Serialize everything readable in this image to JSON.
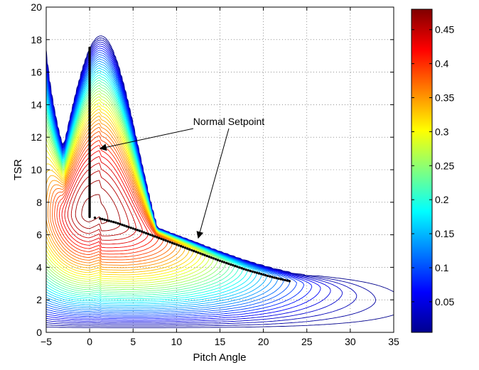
{
  "chart_data": {
    "type": "contour",
    "xlabel": "Pitch Angle",
    "ylabel": "TSR",
    "xlim": [
      -5,
      35
    ],
    "ylim": [
      0,
      20
    ],
    "xticks": [
      "−5",
      "0",
      "5",
      "10",
      "15",
      "20",
      "25",
      "30",
      "35"
    ],
    "yticks": [
      "0",
      "2",
      "4",
      "6",
      "8",
      "10",
      "12",
      "14",
      "16",
      "18",
      "20"
    ],
    "grid": true,
    "colorbar": {
      "range": [
        0.005,
        0.48
      ],
      "ticks": [
        "0.05",
        "0.1",
        "0.15",
        "0.2",
        "0.25",
        "0.3",
        "0.35",
        "0.4",
        "0.45"
      ],
      "colormap": "jet"
    },
    "surface": {
      "quantity_range": [
        0.005,
        0.475
      ],
      "peak": {
        "x": 0.2,
        "y": 7.7,
        "value": 0.475
      },
      "contour_levels": 46
    },
    "setpoint_series": [
      {
        "x": 0,
        "y": 17.5
      },
      {
        "x": 0,
        "y": 16.0
      },
      {
        "x": 0,
        "y": 14.5
      },
      {
        "x": 0,
        "y": 13.0
      },
      {
        "x": 0,
        "y": 11.5
      },
      {
        "x": 0,
        "y": 10.0
      },
      {
        "x": 0,
        "y": 8.5
      },
      {
        "x": 0,
        "y": 7.1
      },
      {
        "x": 1.2,
        "y": 7.0
      },
      {
        "x": 3,
        "y": 6.75
      },
      {
        "x": 6,
        "y": 6.2
      },
      {
        "x": 9,
        "y": 5.6
      },
      {
        "x": 12,
        "y": 5.0
      },
      {
        "x": 15,
        "y": 4.4
      },
      {
        "x": 18,
        "y": 3.85
      },
      {
        "x": 21,
        "y": 3.4
      },
      {
        "x": 23,
        "y": 3.15
      }
    ],
    "annotation": {
      "text": "Normal Setpoint",
      "arrow_targets": [
        {
          "x": 1.2,
          "y": 11.3
        },
        {
          "x": 12.5,
          "y": 5.8
        }
      ]
    },
    "colors": {
      "series_marker": "#000000",
      "grid": "#555555"
    }
  }
}
